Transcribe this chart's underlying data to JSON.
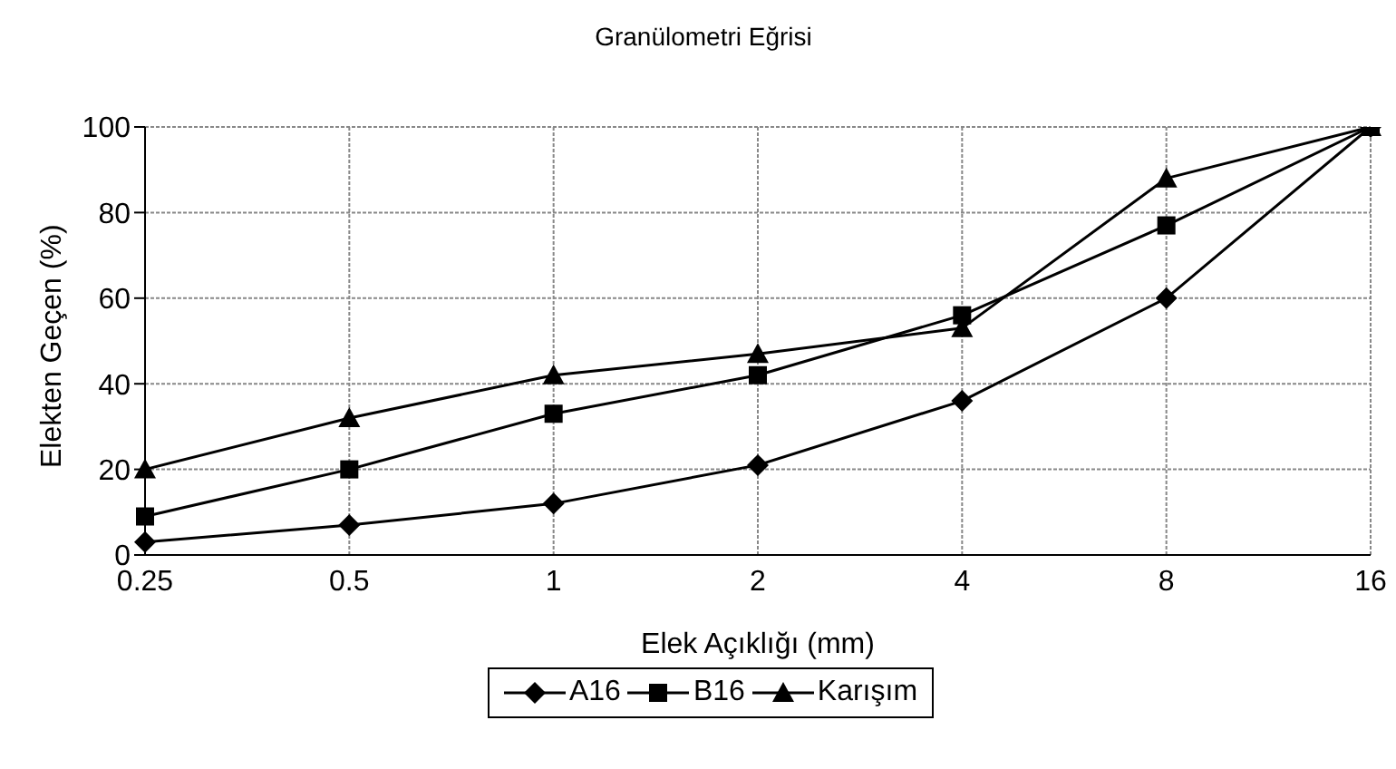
{
  "chart_data": {
    "type": "line",
    "title": "Granülometri Eğrisi",
    "xlabel": "Elek Açıklığı (mm)",
    "ylabel": "Elekten Geçen (%)",
    "categories": [
      "0.25",
      "0.5",
      "1",
      "2",
      "4",
      "8",
      "16"
    ],
    "series": [
      {
        "name": "A16",
        "color": "#000000",
        "marker": "diamond",
        "values": [
          3,
          7,
          12,
          21,
          36,
          60,
          100
        ]
      },
      {
        "name": "B16",
        "color": "#000000",
        "marker": "square",
        "values": [
          9,
          20,
          33,
          42,
          56,
          77,
          100
        ]
      },
      {
        "name": "Karışım",
        "color": "#000000",
        "marker": "triangle",
        "values": [
          20,
          32,
          42,
          47,
          53,
          88,
          100
        ]
      }
    ],
    "ylim": [
      0,
      100
    ],
    "yticks": [
      0,
      20,
      40,
      60,
      80,
      100
    ],
    "grid": true,
    "legend": "bottom",
    "line_style": "solid"
  }
}
